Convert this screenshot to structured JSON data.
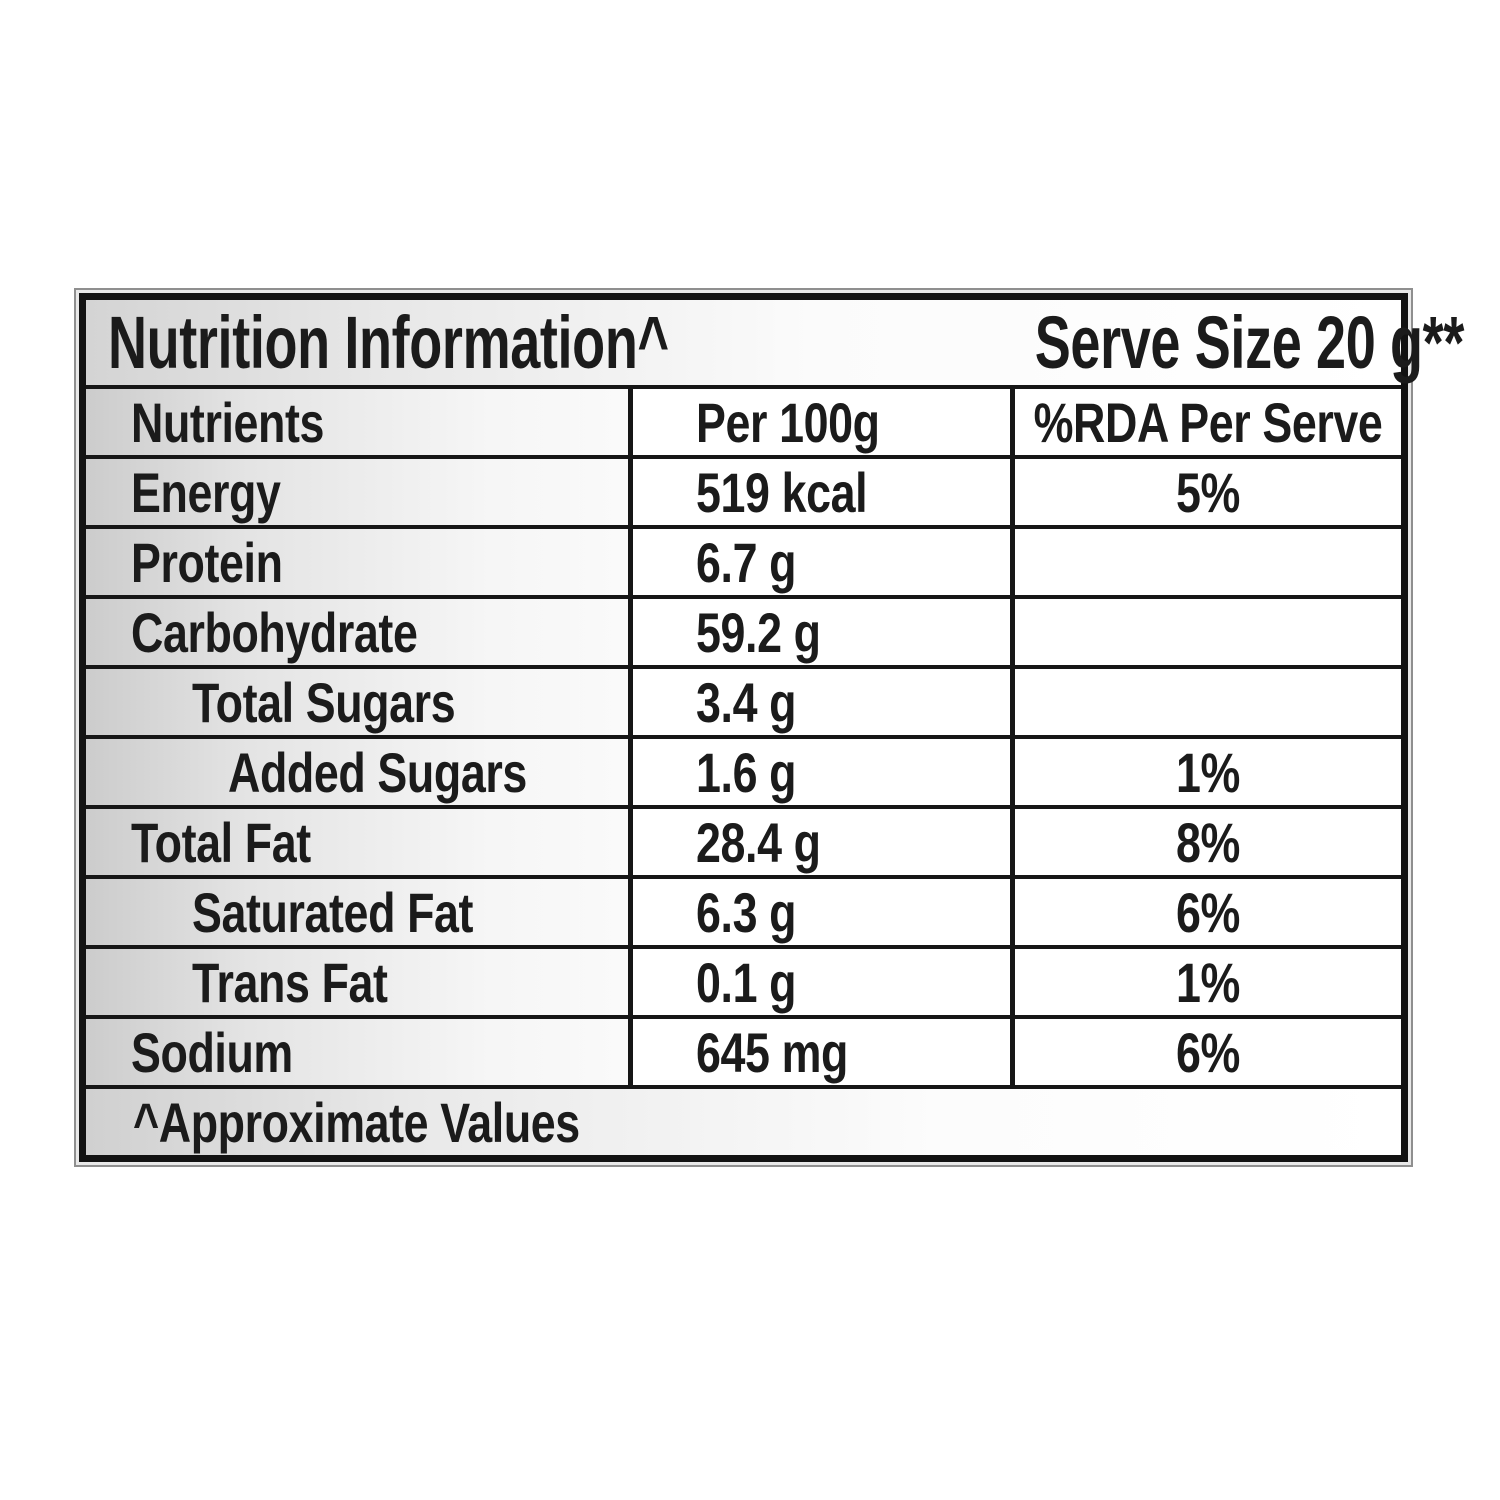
{
  "table": {
    "title": "Nutrition Information^",
    "serve_size": "Serve Size 20 g**",
    "columns": {
      "nutrients": "Nutrients",
      "per_100g": "Per 100g",
      "rda": "%RDA Per Serve"
    },
    "rows": [
      {
        "name": "Energy",
        "per_100g": "519 kcal",
        "rda": "5%",
        "indent": 0
      },
      {
        "name": "Protein",
        "per_100g": "6.7 g",
        "rda": "",
        "indent": 0
      },
      {
        "name": "Carbohydrate",
        "per_100g": "59.2 g",
        "rda": "",
        "indent": 0
      },
      {
        "name": "Total Sugars",
        "per_100g": "3.4 g",
        "rda": "",
        "indent": 1
      },
      {
        "name": "Added Sugars",
        "per_100g": "1.6 g",
        "rda": "1%",
        "indent": 2
      },
      {
        "name": "Total Fat",
        "per_100g": "28.4 g",
        "rda": "8%",
        "indent": 0
      },
      {
        "name": "Saturated Fat",
        "per_100g": "6.3 g",
        "rda": "6%",
        "indent": 1
      },
      {
        "name": "Trans Fat",
        "per_100g": "0.1 g",
        "rda": "1%",
        "indent": 1
      },
      {
        "name": "Sodium",
        "per_100g": "645 mg",
        "rda": "6%",
        "indent": 0
      }
    ],
    "footnote": "^Approximate Values",
    "colors": {
      "border_black": "#121212",
      "frame_gray": "#8f8f8f",
      "gradient_gray": "#cccccc",
      "text": "#1b1b1b",
      "cell_white": "#ffffff"
    }
  }
}
